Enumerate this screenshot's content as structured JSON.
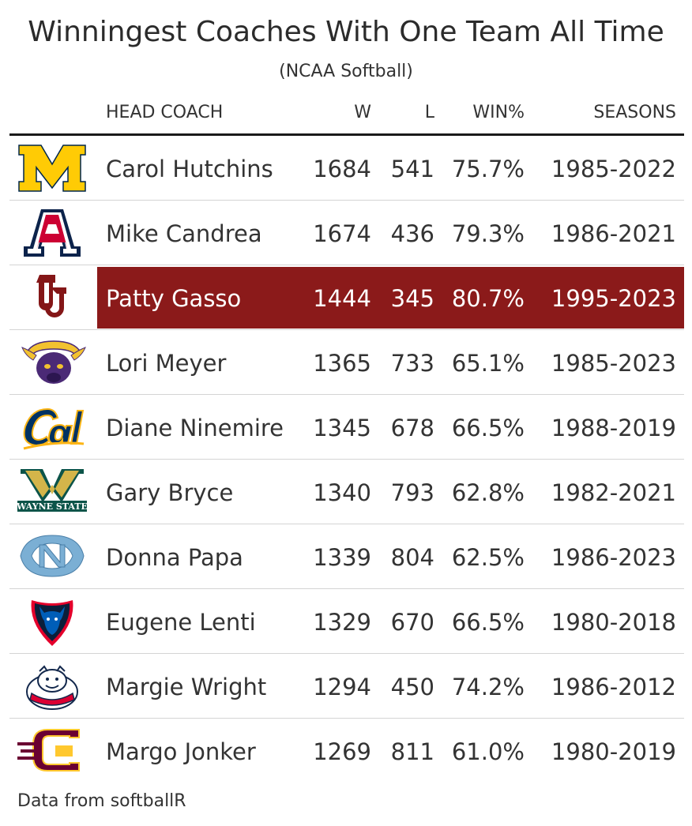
{
  "title": "Winningest Coaches With One Team All Time",
  "subtitle": "(NCAA Softball)",
  "source": "Data from softballR",
  "colors": {
    "highlight": "#8b1a1a",
    "michigan_maize": "#ffcb05",
    "michigan_blue": "#00274c",
    "arizona_red": "#cc0033",
    "arizona_navy": "#0c234b",
    "oklahoma_crimson": "#841617",
    "mankato_purple": "#4b2a76",
    "mankato_gold": "#f2c230",
    "cal_blue": "#003262",
    "cal_gold": "#fdb515",
    "wayne_green": "#0c5449",
    "wayne_gold": "#d4b54a",
    "carolina_blue": "#7bafd4",
    "depaul_blue": "#005eb8",
    "depaul_red": "#e4002b",
    "fresno_red": "#db0032",
    "fresno_blue": "#13284c",
    "cmu_maroon": "#6a0032",
    "cmu_gold": "#ffc82e"
  },
  "chart_data": {
    "type": "table",
    "title": "Winningest Coaches With One Team All Time",
    "subtitle": "(NCAA Softball)",
    "columns": [
      "HEAD COACH",
      "W",
      "L",
      "WIN%",
      "SEASONS"
    ],
    "highlight_row": "Patty Gasso",
    "rows": [
      {
        "logo": "michigan-logo-icon",
        "coach": "Carol Hutchins",
        "w": "1684",
        "l": "541",
        "pct": "75.7%",
        "seasons": "1985-2022"
      },
      {
        "logo": "arizona-logo-icon",
        "coach": "Mike Candrea",
        "w": "1674",
        "l": "436",
        "pct": "79.3%",
        "seasons": "1986-2021"
      },
      {
        "logo": "oklahoma-logo-icon",
        "coach": "Patty Gasso",
        "w": "1444",
        "l": "345",
        "pct": "80.7%",
        "seasons": "1995-2023"
      },
      {
        "logo": "minnesota-state-mavericks-logo-icon",
        "coach": "Lori Meyer",
        "w": "1365",
        "l": "733",
        "pct": "65.1%",
        "seasons": "1985-2023"
      },
      {
        "logo": "cal-logo-icon",
        "coach": "Diane Ninemire",
        "w": "1345",
        "l": "678",
        "pct": "66.5%",
        "seasons": "1988-2019"
      },
      {
        "logo": "wayne-state-logo-icon",
        "coach": "Gary Bryce",
        "w": "1340",
        "l": "793",
        "pct": "62.8%",
        "seasons": "1982-2021"
      },
      {
        "logo": "north-carolina-logo-icon",
        "coach": "Donna Papa",
        "w": "1339",
        "l": "804",
        "pct": "62.5%",
        "seasons": "1986-2023"
      },
      {
        "logo": "depaul-logo-icon",
        "coach": "Eugene Lenti",
        "w": "1329",
        "l": "670",
        "pct": "66.5%",
        "seasons": "1980-2018"
      },
      {
        "logo": "fresno-state-logo-icon",
        "coach": "Margie Wright",
        "w": "1294",
        "l": "450",
        "pct": "74.2%",
        "seasons": "1986-2012"
      },
      {
        "logo": "central-michigan-logo-icon",
        "coach": "Margo Jonker",
        "w": "1269",
        "l": "811",
        "pct": "61.0%",
        "seasons": "1980-2019"
      }
    ]
  }
}
